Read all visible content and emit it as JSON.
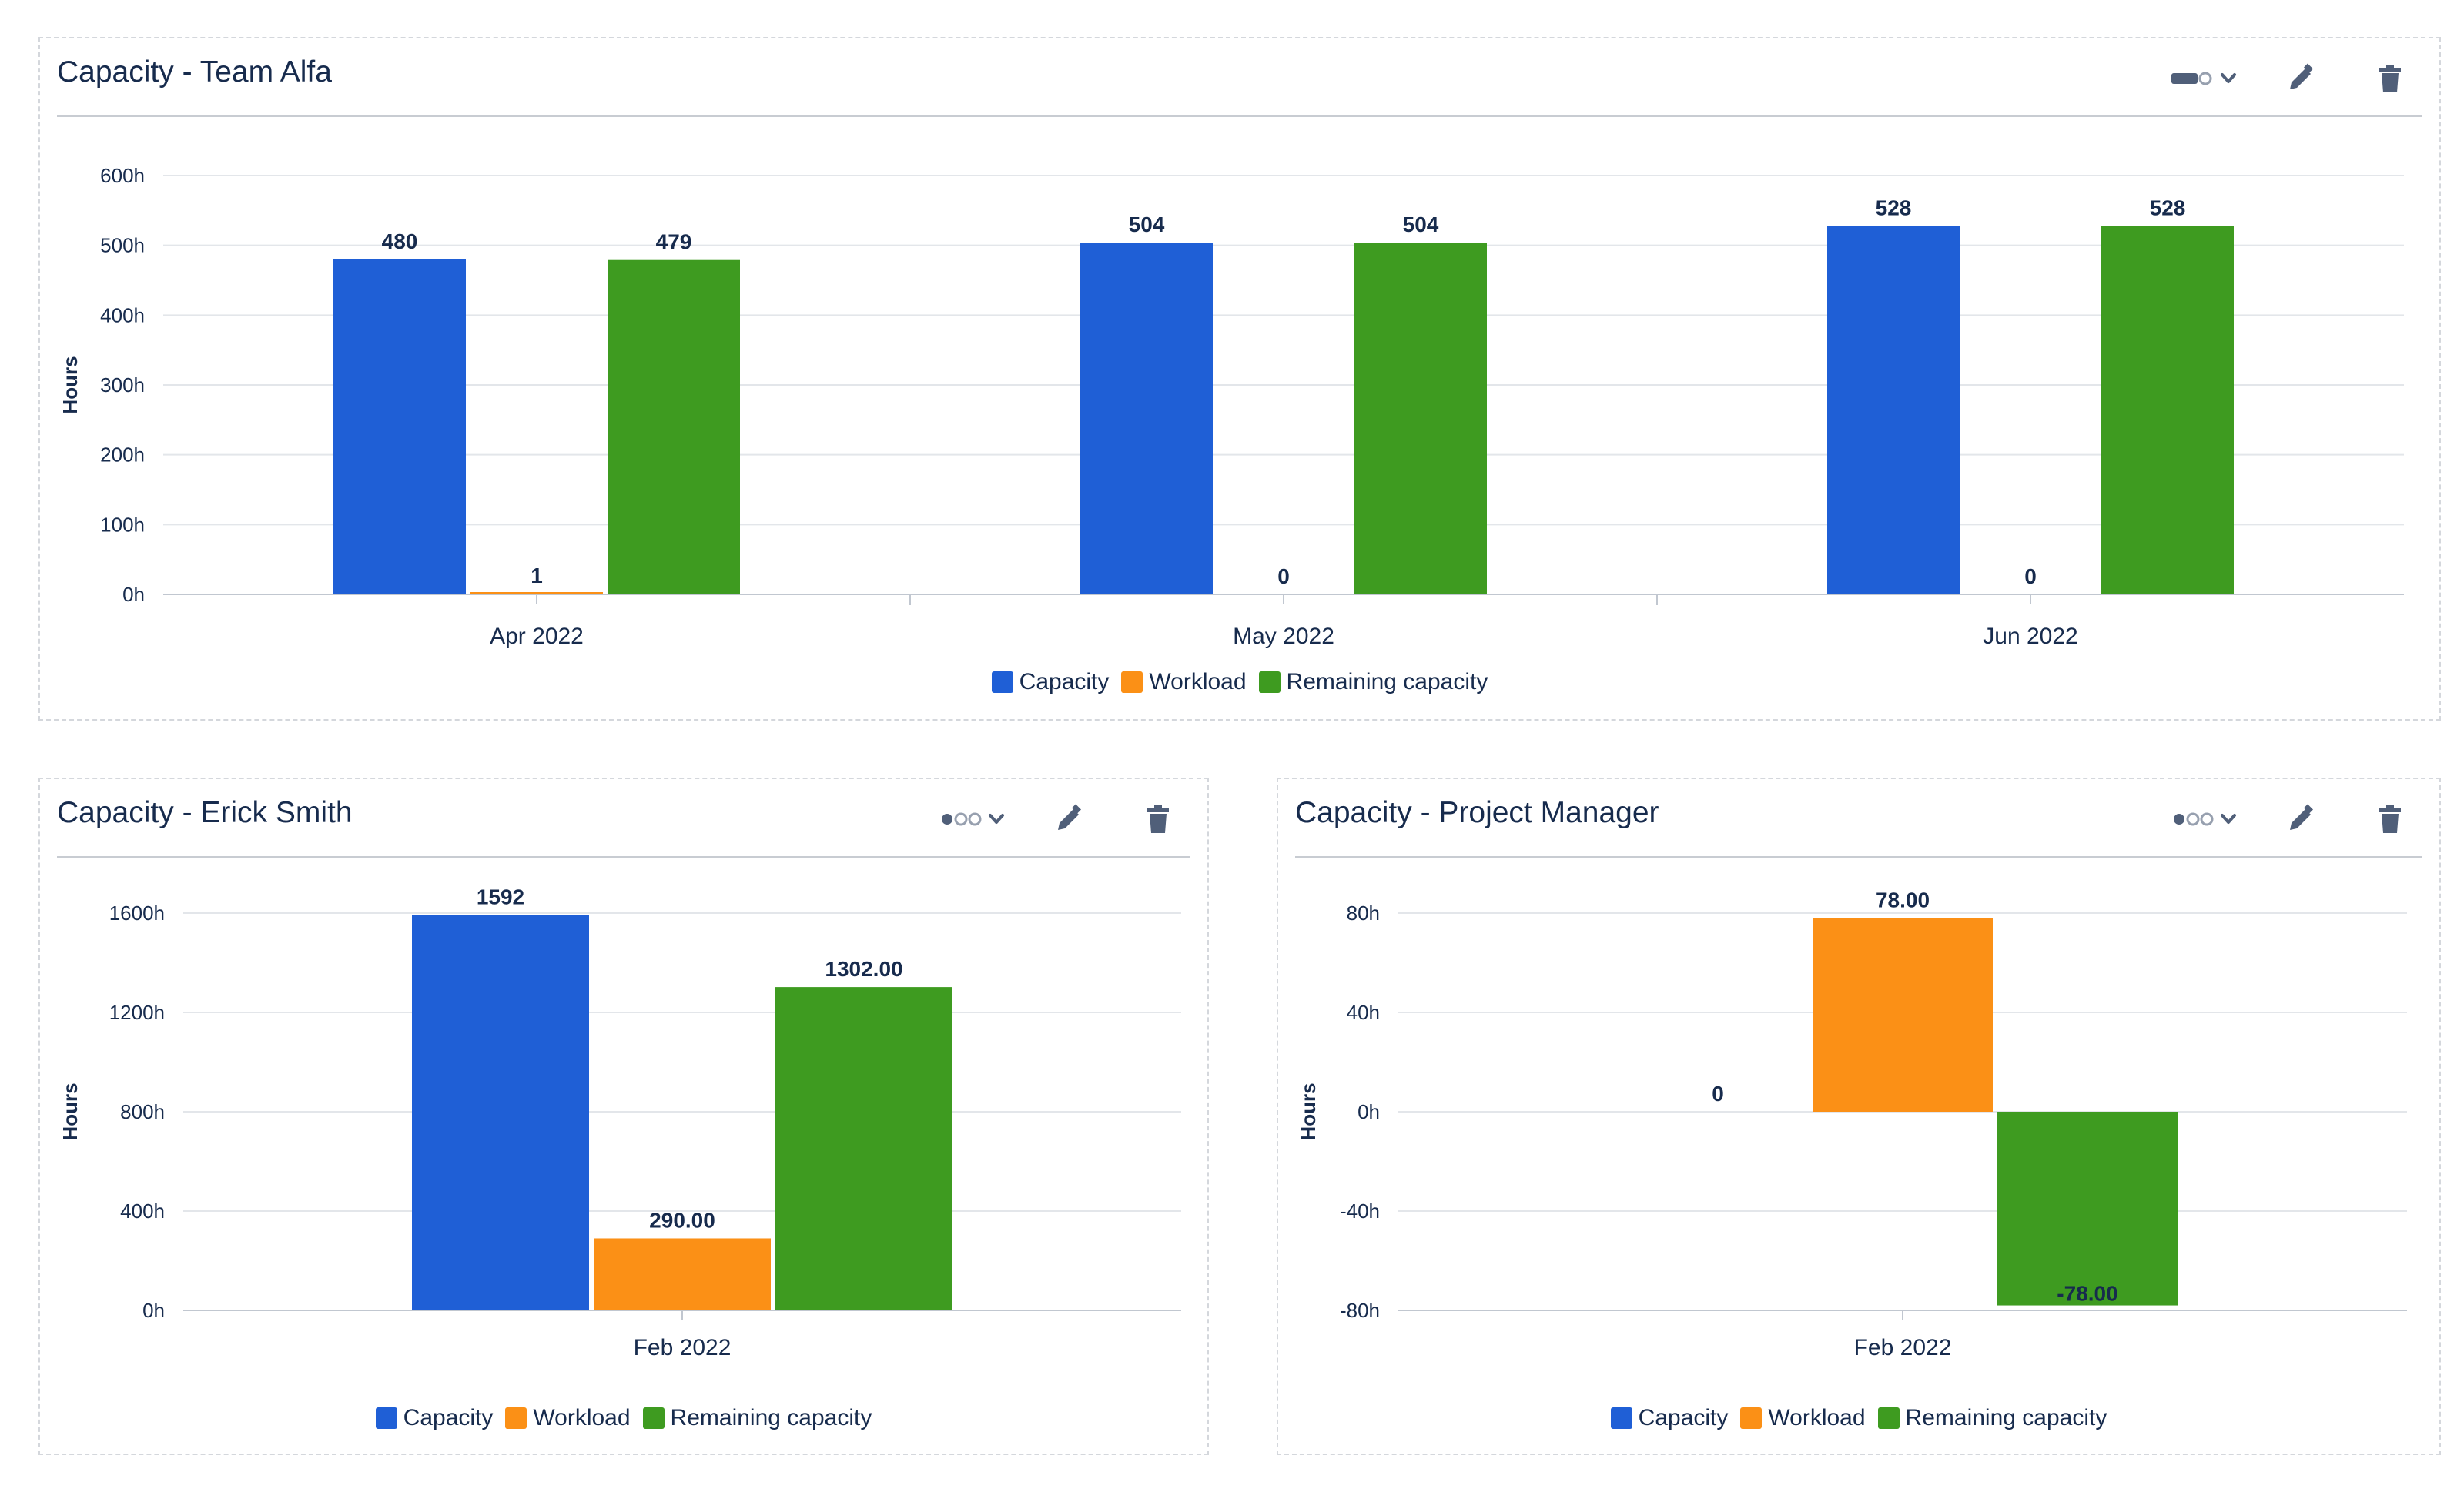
{
  "colors": {
    "capacity": "#1f5fd6",
    "workload": "#fb9016",
    "remaining": "#3e9b20",
    "grid": "#e3e6ea",
    "axis": "#c1c7d0",
    "text": "#172b4d",
    "icon": "#505f79"
  },
  "legend": [
    "Capacity",
    "Workload",
    "Remaining capacity"
  ],
  "gadgets": [
    {
      "title": "Capacity - Team Alfa",
      "chart_data": {
        "type": "bar",
        "categories": [
          "Apr 2022",
          "May 2022",
          "Jun 2022"
        ],
        "series": [
          {
            "name": "Capacity",
            "values": [
              480,
              504,
              528
            ],
            "labels": [
              "480",
              "504",
              "528"
            ]
          },
          {
            "name": "Workload",
            "values": [
              1,
              0,
              0
            ],
            "labels": [
              "1",
              "0",
              "0"
            ]
          },
          {
            "name": "Remaining capacity",
            "values": [
              479,
              504,
              528
            ],
            "labels": [
              "479",
              "504",
              "528"
            ]
          }
        ],
        "ylabel": "Hours",
        "ylim": [
          0,
          600
        ],
        "yticks": [
          0,
          100,
          200,
          300,
          400,
          500,
          600
        ],
        "ytick_labels": [
          "0h",
          "100h",
          "200h",
          "300h",
          "400h",
          "500h",
          "600h"
        ],
        "grid": true,
        "legend": "bottom-center"
      }
    },
    {
      "title": "Capacity - Erick Smith",
      "chart_data": {
        "type": "bar",
        "categories": [
          "Feb 2022"
        ],
        "series": [
          {
            "name": "Capacity",
            "values": [
              1592
            ],
            "labels": [
              "1592"
            ]
          },
          {
            "name": "Workload",
            "values": [
              290
            ],
            "labels": [
              "290.00"
            ]
          },
          {
            "name": "Remaining capacity",
            "values": [
              1302
            ],
            "labels": [
              "1302.00"
            ]
          }
        ],
        "ylabel": "Hours",
        "ylim": [
          0,
          1600
        ],
        "yticks": [
          0,
          400,
          800,
          1200,
          1600
        ],
        "ytick_labels": [
          "0h",
          "400h",
          "800h",
          "1200h",
          "1600h"
        ],
        "grid": true,
        "legend": "bottom-center"
      }
    },
    {
      "title": "Capacity - Project Manager",
      "chart_data": {
        "type": "bar",
        "categories": [
          "Feb 2022"
        ],
        "series": [
          {
            "name": "Capacity",
            "values": [
              0
            ],
            "labels": [
              "0"
            ]
          },
          {
            "name": "Workload",
            "values": [
              78
            ],
            "labels": [
              "78.00"
            ]
          },
          {
            "name": "Remaining capacity",
            "values": [
              -78
            ],
            "labels": [
              "-78.00"
            ]
          }
        ],
        "ylabel": "Hours",
        "ylim": [
          -80,
          80
        ],
        "yticks": [
          -80,
          -40,
          0,
          40,
          80
        ],
        "ytick_labels": [
          "-80h",
          "-40h",
          "0h",
          "40h",
          "80h"
        ],
        "grid": true,
        "legend": "bottom-center"
      }
    }
  ]
}
